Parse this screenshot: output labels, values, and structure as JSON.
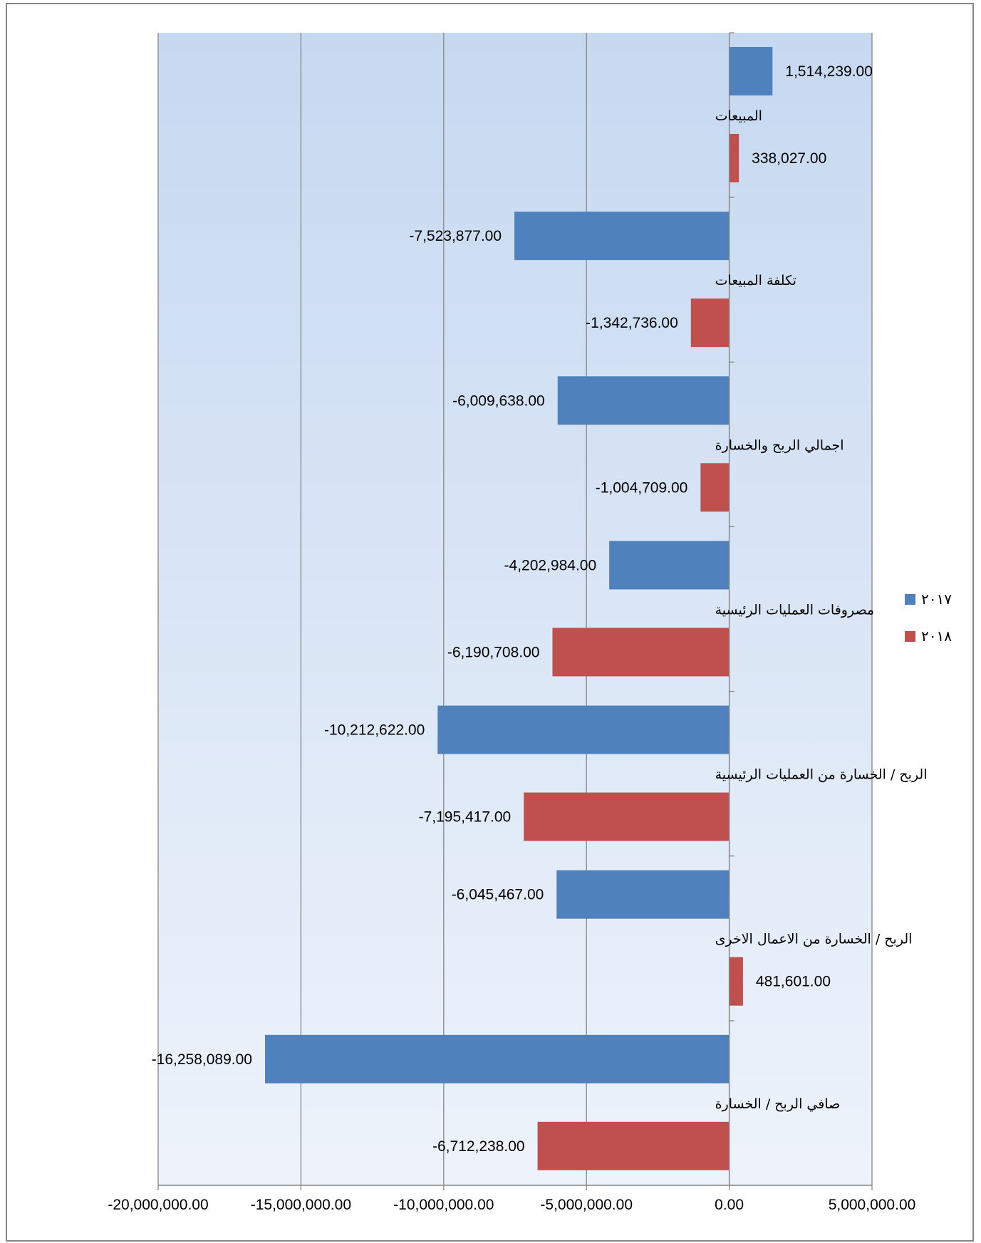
{
  "chart_data": {
    "type": "bar",
    "orientation": "horizontal",
    "categories": [
      "المبيعات",
      "تكلفة المبيعات",
      "اجمالي الربح والخسارة",
      "مصروفات العمليات الرئيسية",
      "الربح / الخسارة من العمليات الرئيسية",
      "الربح / الخسارة من الاعمال الاخرى",
      "صافي الربح / الخسارة"
    ],
    "series": [
      {
        "name": "٢٠١٧",
        "color": "#4F81BD",
        "values": [
          1514239,
          -7523877,
          -6009638,
          -4202984,
          -10212622,
          -6045467,
          -16258089
        ],
        "labels": [
          "1,514,239.00",
          "-7,523,877.00",
          "-6,009,638.00",
          "-4,202,984.00",
          "-10,212,622.00",
          "-6,045,467.00",
          "-16,258,089.00"
        ]
      },
      {
        "name": "٢٠١٨",
        "color": "#C0504D",
        "values": [
          338027,
          -1342736,
          -1004709,
          -6190708,
          -7195417,
          481601,
          -6712238
        ],
        "labels": [
          "338,027.00",
          "-1,342,736.00",
          "-1,004,709.00",
          "-6,190,708.00",
          "-7,195,417.00",
          "481,601.00",
          "-6,712,238.00"
        ]
      }
    ],
    "xlim": [
      -20000000,
      5000000
    ],
    "xticks": [
      -20000000,
      -15000000,
      -10000000,
      -5000000,
      0,
      5000000
    ],
    "xtick_labels": [
      "-20,000,000.00",
      "-15,000,000.00",
      "-10,000,000.00",
      "-5,000,000.00",
      "0.00",
      "5,000,000.00"
    ],
    "grid": true,
    "legend": "right",
    "plot_background": [
      "#C6D9F1",
      "#EEF3FB"
    ]
  }
}
